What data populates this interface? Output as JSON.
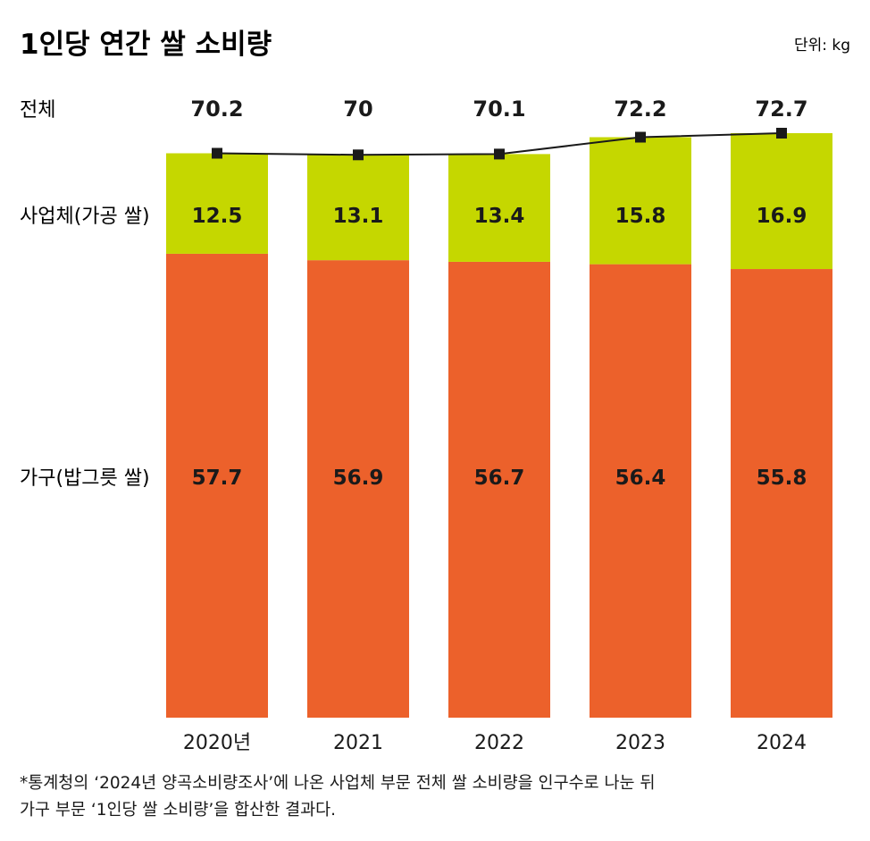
{
  "title": "1인당 연간 쌀 소비량",
  "unit_label": "단위: kg",
  "row_labels": {
    "total": "전체",
    "industry": "사업체(가공 쌀)",
    "household": "가구(밥그릇 쌀)"
  },
  "colors": {
    "household": "#ec612b",
    "industry": "#c5d700",
    "line": "#1a1a1a",
    "text": "#1a1a1a"
  },
  "chart_data": {
    "type": "bar",
    "stacked": true,
    "categories": [
      "2020년",
      "2021",
      "2022",
      "2023",
      "2024"
    ],
    "series": [
      {
        "name": "가구(밥그릇 쌀)",
        "values": [
          57.7,
          56.9,
          56.7,
          56.4,
          55.8
        ]
      },
      {
        "name": "사업체(가공 쌀)",
        "values": [
          12.5,
          13.1,
          13.4,
          15.8,
          16.9
        ]
      }
    ],
    "total_line": {
      "name": "전체",
      "values": [
        70.2,
        70,
        70.1,
        72.2,
        72.7
      ]
    },
    "ylim": [
      0,
      72.7
    ],
    "grid": false,
    "legend": "left row labels"
  },
  "footnote": {
    "line1": "*통계청의 ‘2024년 양곡소비량조사’에 나온 사업체 부문 전체 쌀 소비량을 인구수로 나눈 뒤",
    "line2": "가구 부문 ‘1인당 쌀 소비량’을 합산한 결과다."
  }
}
